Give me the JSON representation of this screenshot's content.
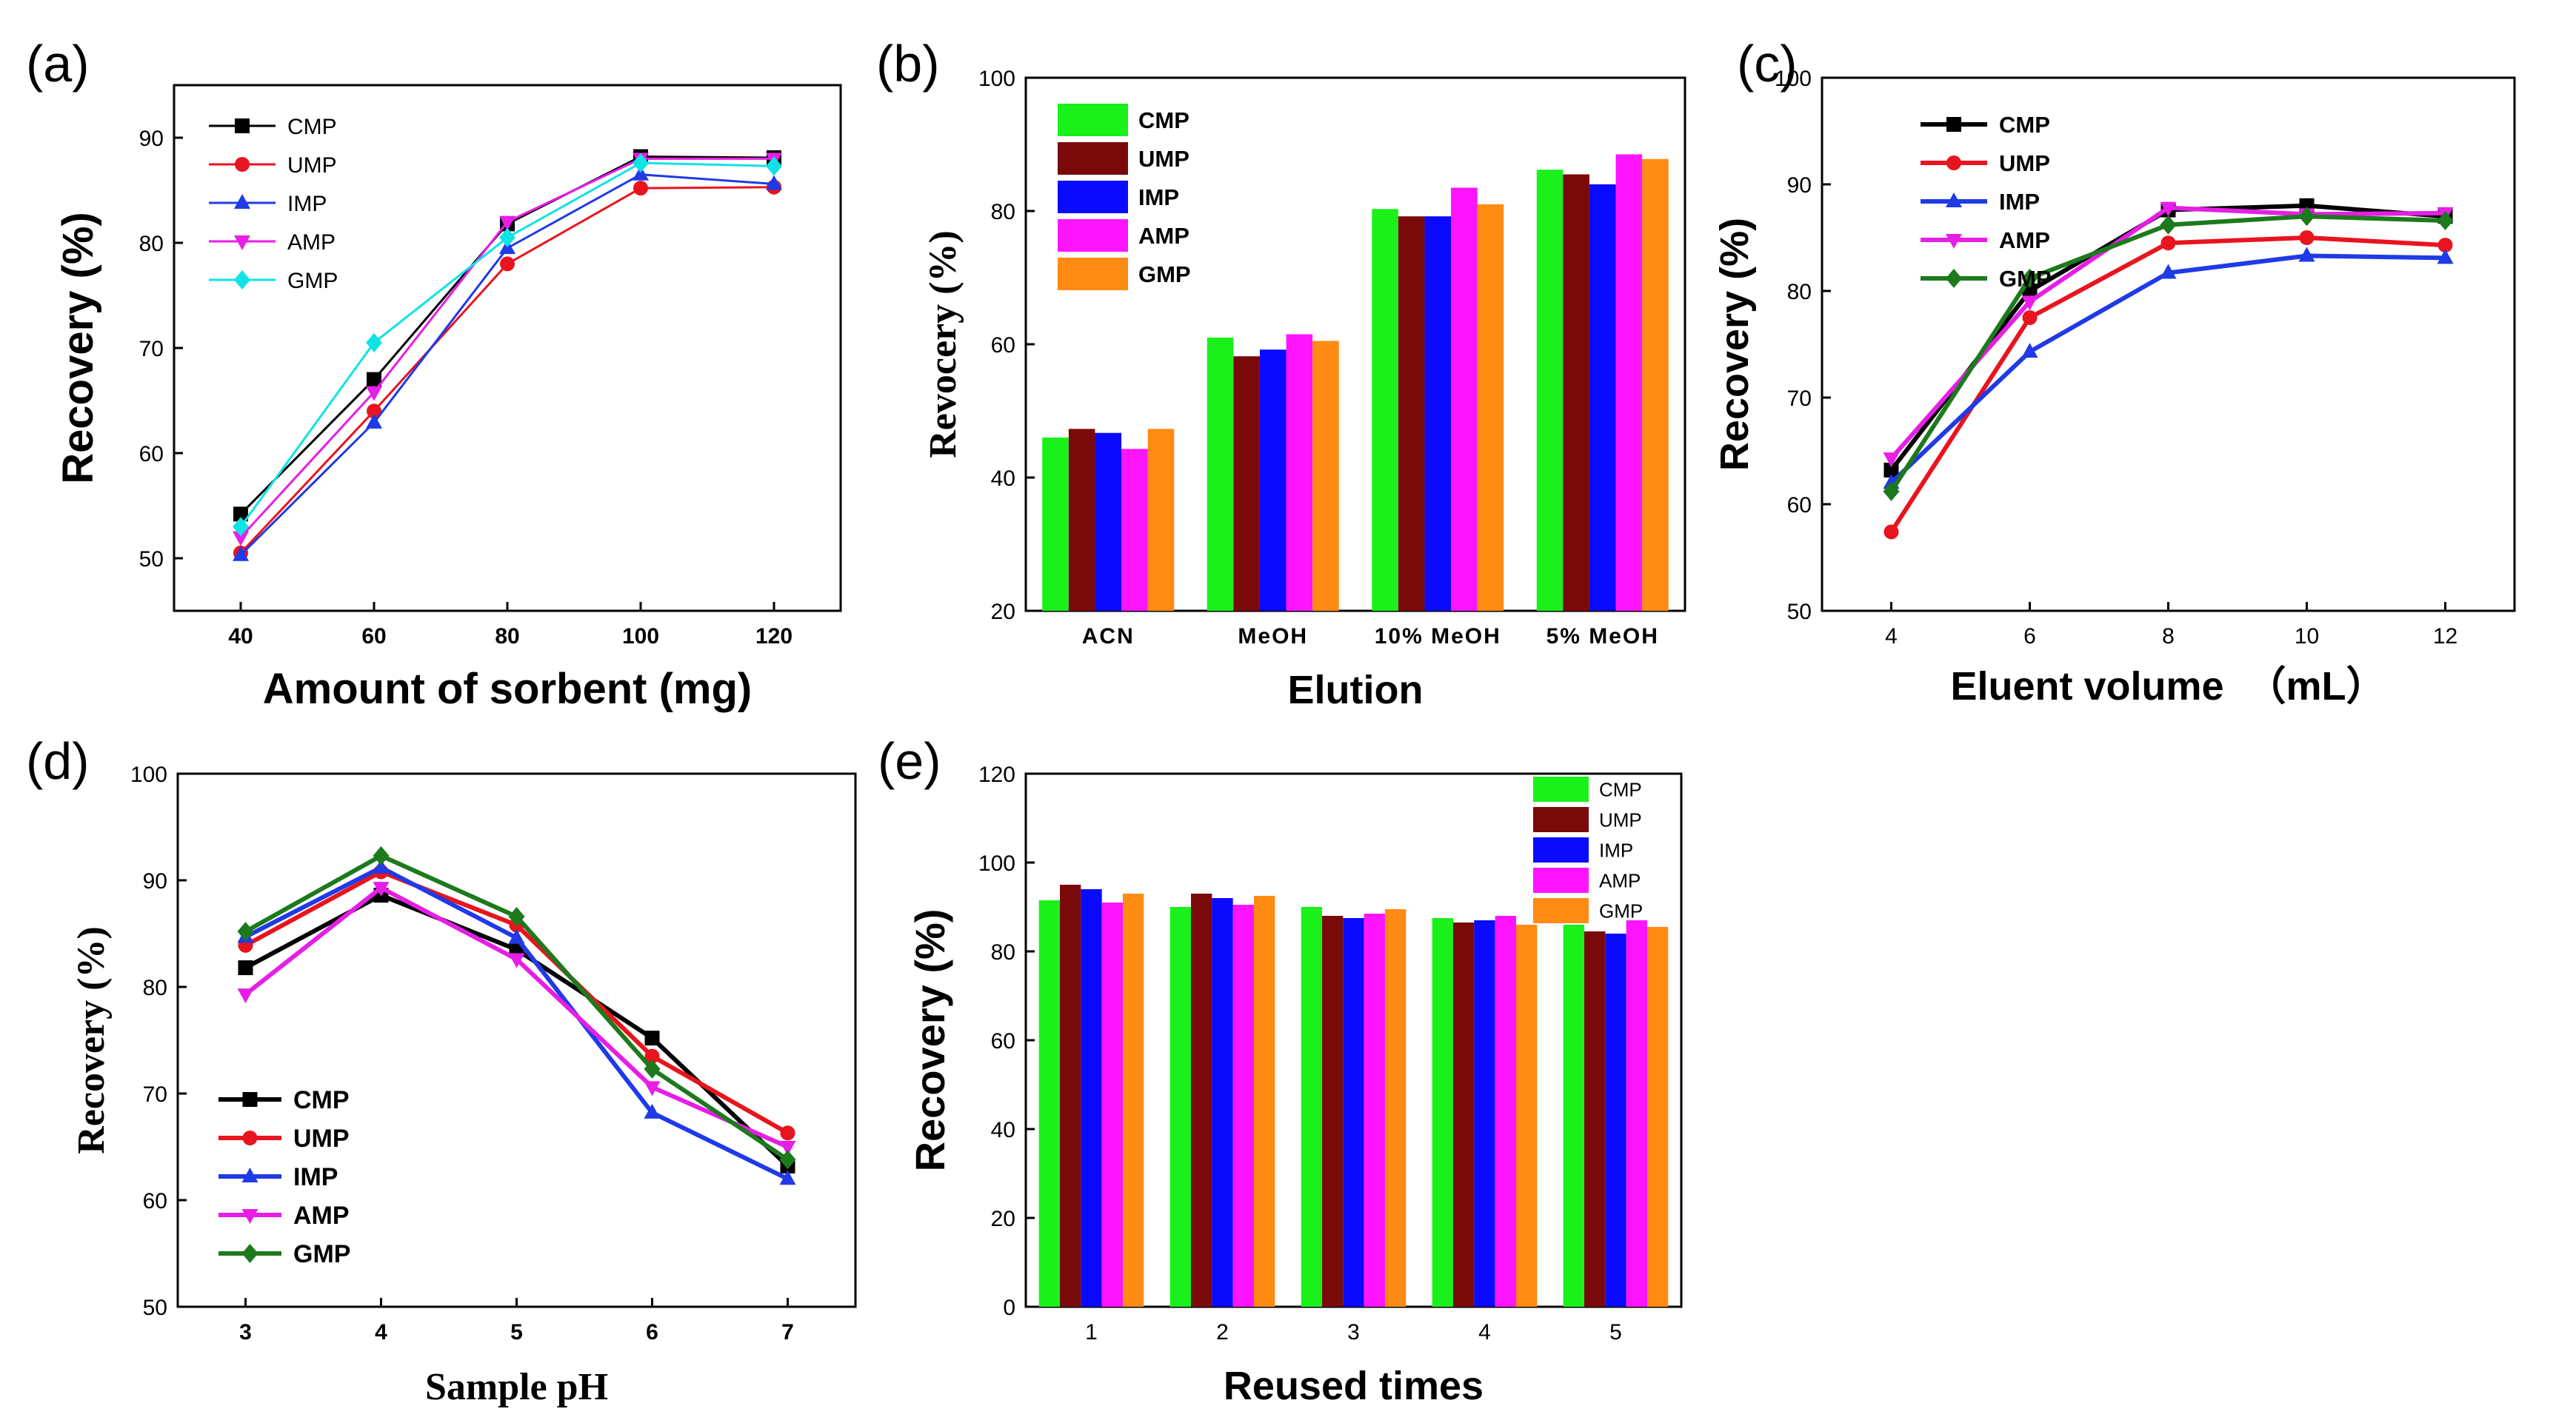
{
  "colors": {
    "CMP_line": "#000000",
    "UMP_line": "#e8141e",
    "IMP_line": "#1f3ae6",
    "AMP_line": "#e61ee6",
    "GMP_line_a": "#0fe3e6",
    "GMP_line_c": "#1c7a1c",
    "CMP_bar": "#1af01a",
    "UMP_bar": "#7a0a0a",
    "IMP_bar": "#0a0aff",
    "AMP_bar": "#ff14ff",
    "GMP_bar": "#ff8a14"
  },
  "chart_data": [
    {
      "panel": "(a)",
      "type": "line",
      "xlabel": "Amount of sorbent (mg)",
      "ylabel": "Recovery (%)",
      "x": [
        40,
        60,
        80,
        100,
        120
      ],
      "xticks": [
        "40",
        "60",
        "80",
        "100",
        "120"
      ],
      "yticks": [
        "50",
        "60",
        "70",
        "80",
        "90"
      ],
      "xlim": [
        30,
        130
      ],
      "ylim": [
        45,
        95
      ],
      "series": [
        {
          "name": "CMP",
          "values": [
            54.2,
            67.0,
            81.8,
            88.2,
            88.1
          ],
          "marker": "square"
        },
        {
          "name": "UMP",
          "values": [
            50.5,
            64.0,
            78.0,
            85.2,
            85.3
          ],
          "marker": "circle"
        },
        {
          "name": "IMP",
          "values": [
            50.3,
            62.9,
            79.5,
            86.5,
            85.6
          ],
          "marker": "triangle-up"
        },
        {
          "name": "AMP",
          "values": [
            52.0,
            65.8,
            82.0,
            88.0,
            88.0
          ],
          "marker": "triangle-down"
        },
        {
          "name": "GMP",
          "values": [
            53.0,
            70.5,
            80.5,
            87.6,
            87.3
          ],
          "marker": "diamond"
        }
      ]
    },
    {
      "panel": "(b)",
      "type": "bar",
      "xlabel": "Elution",
      "ylabel": "Revocery (%)",
      "categories": [
        "ACN",
        "MeOH",
        "10%  MeOH",
        "5%  MeOH"
      ],
      "yticks": [
        "20",
        "40",
        "60",
        "80",
        "100"
      ],
      "ylim": [
        20,
        100
      ],
      "series": [
        {
          "name": "CMP",
          "values": [
            46.0,
            61.0,
            80.3,
            86.2
          ]
        },
        {
          "name": "UMP",
          "values": [
            47.3,
            58.2,
            79.2,
            85.5
          ]
        },
        {
          "name": "IMP",
          "values": [
            46.7,
            59.2,
            79.2,
            84.0
          ]
        },
        {
          "name": "AMP",
          "values": [
            44.3,
            61.5,
            83.5,
            88.5
          ]
        },
        {
          "name": "GMP",
          "values": [
            47.3,
            60.5,
            81.0,
            87.8
          ]
        }
      ]
    },
    {
      "panel": "(c)",
      "type": "line",
      "xlabel": "Eluent volume  （mL）",
      "ylabel": "Recovery (%)",
      "x": [
        4,
        6,
        8,
        10,
        12
      ],
      "xticks": [
        "4",
        "6",
        "8",
        "10",
        "12"
      ],
      "yticks": [
        "50",
        "60",
        "70",
        "80",
        "90",
        "100"
      ],
      "xlim": [
        3,
        13
      ],
      "ylim": [
        50,
        100
      ],
      "series": [
        {
          "name": "CMP",
          "values": [
            63.2,
            80.0,
            87.6,
            88.0,
            87.0
          ],
          "marker": "square"
        },
        {
          "name": "UMP",
          "values": [
            57.4,
            77.5,
            84.5,
            85.0,
            84.3
          ],
          "marker": "circle"
        },
        {
          "name": "IMP",
          "values": [
            62.0,
            74.3,
            81.7,
            83.3,
            83.1
          ],
          "marker": "triangle-up"
        },
        {
          "name": "AMP",
          "values": [
            64.3,
            79.0,
            87.8,
            87.2,
            87.3
          ],
          "marker": "triangle-down"
        },
        {
          "name": "GMP",
          "values": [
            61.2,
            81.2,
            86.2,
            87.0,
            86.6
          ],
          "marker": "diamond"
        }
      ]
    },
    {
      "panel": "(d)",
      "type": "line",
      "xlabel": "Sample pH",
      "ylabel": "Recovery (%)",
      "x": [
        3,
        4,
        5,
        6,
        7
      ],
      "xticks": [
        "3",
        "4",
        "5",
        "6",
        "7"
      ],
      "yticks": [
        "50",
        "60",
        "70",
        "80",
        "90",
        "100"
      ],
      "xlim": [
        2.5,
        7.5
      ],
      "ylim": [
        50,
        100
      ],
      "series": [
        {
          "name": "CMP",
          "values": [
            81.8,
            88.6,
            83.5,
            75.2,
            63.2
          ],
          "marker": "square"
        },
        {
          "name": "UMP",
          "values": [
            83.9,
            90.8,
            85.8,
            73.5,
            66.3
          ],
          "marker": "circle"
        },
        {
          "name": "IMP",
          "values": [
            84.7,
            91.2,
            84.6,
            68.2,
            62.0
          ],
          "marker": "triangle-up"
        },
        {
          "name": "AMP",
          "values": [
            79.3,
            89.3,
            82.6,
            70.6,
            65.0
          ],
          "marker": "triangle-down"
        },
        {
          "name": "GMP",
          "values": [
            85.2,
            92.3,
            86.6,
            72.3,
            63.8
          ],
          "marker": "diamond"
        }
      ]
    },
    {
      "panel": "(e)",
      "type": "bar",
      "xlabel": "Reused times",
      "ylabel": "Recovery (%)",
      "categories": [
        "1",
        "2",
        "3",
        "4",
        "5"
      ],
      "yticks": [
        "0",
        "20",
        "40",
        "60",
        "80",
        "100",
        "120"
      ],
      "ylim": [
        0,
        120
      ],
      "series": [
        {
          "name": "CMP",
          "values": [
            91.5,
            90.0,
            90.0,
            87.5,
            86.0
          ]
        },
        {
          "name": "UMP",
          "values": [
            95.0,
            93.0,
            88.0,
            86.5,
            84.5
          ]
        },
        {
          "name": "IMP",
          "values": [
            94.0,
            92.0,
            87.5,
            87.0,
            84.0
          ]
        },
        {
          "name": "AMP",
          "values": [
            91.0,
            90.5,
            88.5,
            88.0,
            87.0
          ]
        },
        {
          "name": "GMP",
          "values": [
            93.0,
            92.5,
            89.5,
            86.0,
            85.5
          ]
        }
      ]
    }
  ]
}
